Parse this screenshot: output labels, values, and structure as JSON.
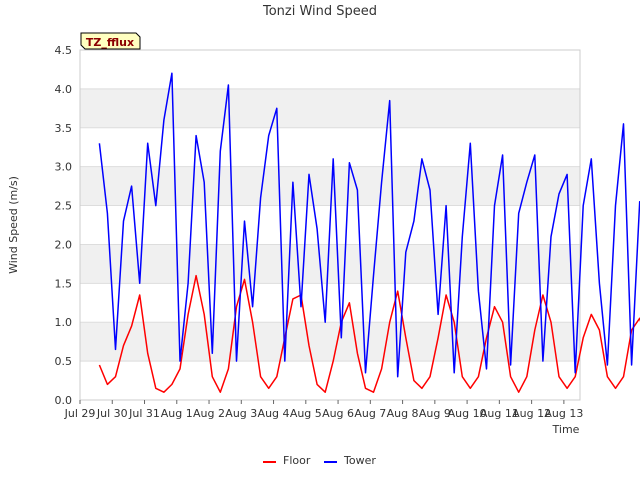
{
  "chart_data": {
    "type": "line",
    "title": "Tonzi Wind Speed",
    "xlabel": "Time",
    "ylabel": "Wind Speed (m/s)",
    "badge": "TZ_fflux",
    "ylim": [
      0,
      4.5
    ],
    "yticks": [
      0.0,
      0.5,
      1.0,
      1.5,
      2.0,
      2.5,
      3.0,
      3.5,
      4.0,
      4.5
    ],
    "ytick_labels": [
      "0.0",
      "0.5",
      "1.0",
      "1.5",
      "2.0",
      "2.5",
      "3.0",
      "3.5",
      "4.0",
      "4.5"
    ],
    "xlim": [
      0,
      15.5
    ],
    "xticks": [
      0,
      1,
      2,
      3,
      4,
      5,
      6,
      7,
      8,
      9,
      10,
      11,
      12,
      13,
      14,
      15
    ],
    "xtick_labels": [
      "Jul 29",
      "Jul 30",
      "Jul 31",
      "Aug 1",
      "Aug 2",
      "Aug 3",
      "Aug 4",
      "Aug 5",
      "Aug 6",
      "Aug 7",
      "Aug 8",
      "Aug 9",
      "Aug 10",
      "Aug 11",
      "Aug 12",
      "Aug 13"
    ],
    "x_start": 0.6,
    "x_step": 0.25,
    "series": [
      {
        "name": "Floor",
        "color": "#ff0000",
        "values": [
          0.45,
          0.2,
          0.3,
          0.7,
          0.95,
          1.35,
          0.6,
          0.15,
          0.1,
          0.2,
          0.4,
          1.1,
          1.6,
          1.1,
          0.3,
          0.1,
          0.4,
          1.2,
          1.55,
          1.0,
          0.3,
          0.15,
          0.3,
          0.8,
          1.3,
          1.35,
          0.7,
          0.2,
          0.1,
          0.5,
          1.0,
          1.25,
          0.6,
          0.15,
          0.1,
          0.4,
          1.0,
          1.4,
          0.8,
          0.25,
          0.15,
          0.3,
          0.8,
          1.35,
          1.0,
          0.3,
          0.15,
          0.3,
          0.8,
          1.2,
          1.0,
          0.3,
          0.1,
          0.3,
          0.9,
          1.35,
          1.0,
          0.3,
          0.15,
          0.3,
          0.8,
          1.1,
          0.9,
          0.3,
          0.15,
          0.3,
          0.9,
          1.05,
          0.7,
          0.25,
          0.15,
          0.2,
          0.9,
          1.0,
          0.5,
          0.1,
          0.2,
          0.6,
          1.0,
          1.15,
          0.5,
          0.1,
          0.1,
          0.5,
          1.2,
          1.45,
          0.3,
          0.1
        ]
      },
      {
        "name": "Tower",
        "color": "#0000ff",
        "values": [
          3.3,
          2.4,
          0.65,
          2.3,
          2.75,
          1.5,
          3.3,
          2.5,
          3.6,
          4.2,
          0.5,
          1.5,
          3.4,
          2.8,
          0.6,
          3.2,
          4.05,
          0.5,
          2.3,
          1.2,
          2.6,
          3.4,
          3.75,
          0.5,
          2.8,
          1.2,
          2.9,
          2.2,
          1.0,
          3.1,
          0.8,
          3.05,
          2.7,
          0.35,
          1.6,
          2.8,
          3.85,
          0.3,
          1.9,
          2.3,
          3.1,
          2.7,
          1.1,
          2.5,
          0.35,
          2.1,
          3.3,
          1.4,
          0.4,
          2.5,
          3.15,
          0.45,
          2.4,
          2.8,
          3.15,
          0.5,
          2.1,
          2.65,
          2.9,
          0.35,
          2.5,
          3.1,
          1.5,
          0.45,
          2.5,
          3.55,
          0.45,
          2.55,
          2.1,
          0.4,
          2.6,
          1.7,
          1.45,
          3.15,
          1.9,
          0.3,
          2.8,
          1.3,
          2.5,
          2.2,
          0.2,
          2.5,
          2.7,
          0.4,
          3.35,
          4.1,
          0.3,
          2.4
        ]
      }
    ]
  }
}
